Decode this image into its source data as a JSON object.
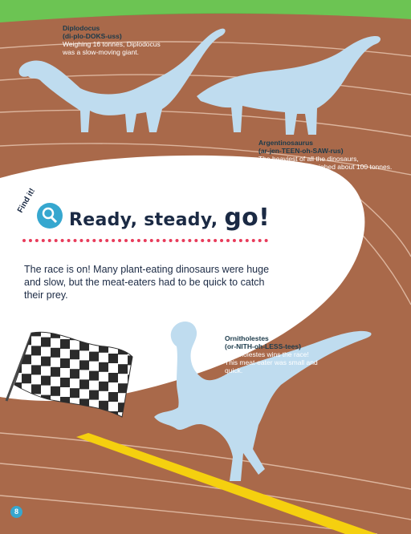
{
  "heading": {
    "find_it": "Find it!",
    "main": "Ready, steady,",
    "go": "go!"
  },
  "intro": "The race is on! Many plant-eating dinosaurs were huge and slow, but the meat-eaters had to be quick to catch their prey.",
  "dinos": [
    {
      "name": "Diplodocus",
      "pron": "(di-plo-DOKS-uss)",
      "desc": "Weighing 16 tonnes, Diplodocus was a slow-moving giant."
    },
    {
      "name": "Argentinosaurus",
      "pron": "(ar-jen-TEEN-oh-SAW-rus)",
      "desc": "The heaviest of all the dinosaurs, Argentinosaurus weighed about 100 tonnes. It ate leaves from treetops."
    },
    {
      "name": "Ornitholestes",
      "pron": "(or-NITH-oh-LESS-tees)",
      "desc": "Ornitholestes wins the race! This meat-eater was small and quick."
    }
  ],
  "page_number": "8",
  "icons": [
    "magnifier-icon",
    "checkered-flag",
    "diplodocus-silhouette",
    "argentinosaurus-silhouette",
    "ornitholestes-silhouette"
  ],
  "colors": {
    "track": "#a9694a",
    "grass": "#58b544",
    "lanes": "#e6c3ad",
    "dino": "#bfdcef",
    "accent": "#e83b5a",
    "finish": "#f5d00f"
  }
}
